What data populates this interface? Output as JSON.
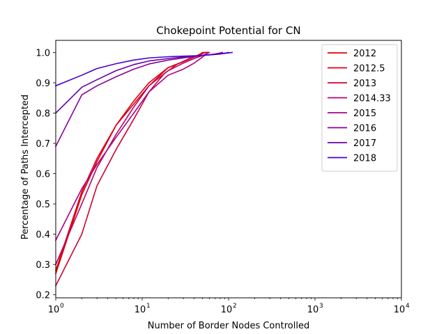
{
  "chart_data": {
    "type": "line",
    "title": "Chokepoint Potential for CN",
    "xlabel": "Number of Border Nodes Controlled",
    "ylabel": "Percentage of Paths Intercepted",
    "xscale": "log",
    "xlim": [
      1,
      10000
    ],
    "ylim": [
      0.19,
      1.04
    ],
    "xticks": [
      {
        "value": 1,
        "base": "10",
        "exp": "0"
      },
      {
        "value": 10,
        "base": "10",
        "exp": "1"
      },
      {
        "value": 100,
        "base": "10",
        "exp": "2"
      },
      {
        "value": 1000,
        "base": "10",
        "exp": "3"
      },
      {
        "value": 10000,
        "base": "10",
        "exp": "4"
      }
    ],
    "yticks": [
      {
        "value": 0.2,
        "label": "0.2"
      },
      {
        "value": 0.3,
        "label": "0.3"
      },
      {
        "value": 0.4,
        "label": "0.4"
      },
      {
        "value": 0.5,
        "label": "0.5"
      },
      {
        "value": 0.6,
        "label": "0.6"
      },
      {
        "value": 0.7,
        "label": "0.7"
      },
      {
        "value": 0.8,
        "label": "0.8"
      },
      {
        "value": 0.9,
        "label": "0.9"
      },
      {
        "value": 1.0,
        "label": "1.0"
      }
    ],
    "legend_position": "top-right",
    "series": [
      {
        "name": "2012",
        "color": "#dd0000",
        "x": [
          1,
          2,
          3,
          5,
          8,
          12,
          20,
          30,
          40,
          47,
          50,
          55
        ],
        "y": [
          0.27,
          0.53,
          0.64,
          0.76,
          0.84,
          0.9,
          0.95,
          0.97,
          0.985,
          0.995,
          1.0,
          1.0
        ]
      },
      {
        "name": "2012.5",
        "color": "#d9001a",
        "x": [
          1,
          2,
          3,
          5,
          8,
          12,
          20,
          30,
          40,
          48,
          52,
          56
        ],
        "y": [
          0.28,
          0.54,
          0.65,
          0.76,
          0.83,
          0.89,
          0.95,
          0.97,
          0.985,
          0.993,
          1.0,
          1.0
        ]
      },
      {
        "name": "2013",
        "color": "#cc0033",
        "x": [
          1,
          2,
          3,
          5,
          8,
          12,
          18,
          25,
          35,
          45,
          53,
          57
        ],
        "y": [
          0.23,
          0.4,
          0.56,
          0.68,
          0.78,
          0.87,
          0.93,
          0.96,
          0.98,
          0.99,
          1.0,
          1.0
        ]
      },
      {
        "name": "2014.33",
        "color": "#bb0066",
        "x": [
          1,
          2,
          3,
          5,
          8,
          12,
          20,
          30,
          40,
          50,
          60
        ],
        "y": [
          0.3,
          0.5,
          0.62,
          0.73,
          0.82,
          0.89,
          0.94,
          0.965,
          0.98,
          0.99,
          1.0
        ]
      },
      {
        "name": "2015",
        "color": "#aa0088",
        "x": [
          1,
          2,
          3,
          5,
          8,
          12,
          20,
          30,
          40,
          50,
          58
        ],
        "y": [
          0.38,
          0.55,
          0.63,
          0.72,
          0.8,
          0.87,
          0.925,
          0.945,
          0.965,
          0.985,
          1.0
        ]
      },
      {
        "name": "2016",
        "color": "#880099",
        "x": [
          1,
          2,
          3,
          5,
          8,
          12,
          20,
          30,
          50,
          70,
          85
        ],
        "y": [
          0.69,
          0.86,
          0.89,
          0.92,
          0.945,
          0.962,
          0.975,
          0.982,
          0.99,
          0.995,
          1.0
        ]
      },
      {
        "name": "2017",
        "color": "#6600aa",
        "x": [
          1,
          2,
          3,
          5,
          8,
          12,
          20,
          30,
          50,
          80,
          100
        ],
        "y": [
          0.8,
          0.885,
          0.91,
          0.94,
          0.96,
          0.972,
          0.98,
          0.985,
          0.99,
          0.995,
          1.0
        ]
      },
      {
        "name": "2018",
        "color": "#4400cc",
        "x": [
          1,
          2,
          3,
          5,
          8,
          12,
          20,
          30,
          50,
          80,
          110
        ],
        "y": [
          0.89,
          0.925,
          0.947,
          0.963,
          0.975,
          0.982,
          0.986,
          0.988,
          0.99,
          0.995,
          1.0
        ]
      }
    ]
  }
}
